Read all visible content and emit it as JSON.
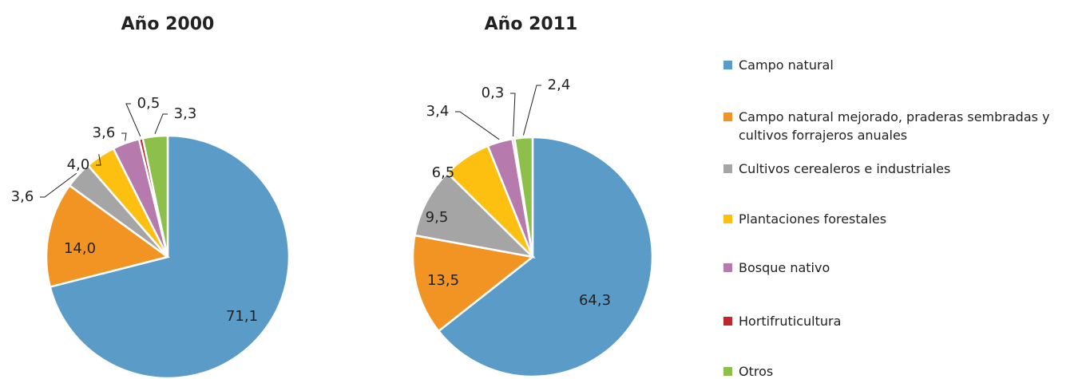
{
  "chart_data": [
    {
      "type": "pie",
      "title": "Año 2000",
      "categories": [
        "Campo natural",
        "Campo natural mejorado, praderas sembradas y cultivos forrajeros anuales",
        "Cultivos cerealeros e industriales",
        "Plantaciones forestales",
        "Bosque nativo",
        "Hortifruticultura",
        "Otros"
      ],
      "values": [
        71.1,
        14.0,
        3.6,
        4.0,
        3.6,
        0.5,
        3.3
      ],
      "value_labels": [
        "71,1",
        "14,0",
        "3,6",
        "4,0",
        "3,6",
        "0,5",
        "3,3"
      ],
      "colors": [
        "#5b9bc8",
        "#f29423",
        "#a5a5a5",
        "#fdc010",
        "#b77aac",
        "#c0272d",
        "#8cc04b"
      ]
    },
    {
      "type": "pie",
      "title": "Año 2011",
      "categories": [
        "Campo natural",
        "Campo natural mejorado, praderas sembradas y cultivos forrajeros anuales",
        "Cultivos cerealeros e industriales",
        "Plantaciones forestales",
        "Bosque nativo",
        "Hortifruticultura",
        "Otros"
      ],
      "values": [
        64.3,
        13.5,
        9.5,
        6.5,
        3.4,
        0.3,
        2.4
      ],
      "value_labels": [
        "64,3",
        "13,5",
        "9,5",
        "6,5",
        "3,4",
        "0,3",
        "2,4"
      ],
      "colors": [
        "#5b9bc8",
        "#f29423",
        "#a5a5a5",
        "#fdc010",
        "#b77aac",
        "#c0272d",
        "#8cc04b"
      ]
    }
  ]
}
